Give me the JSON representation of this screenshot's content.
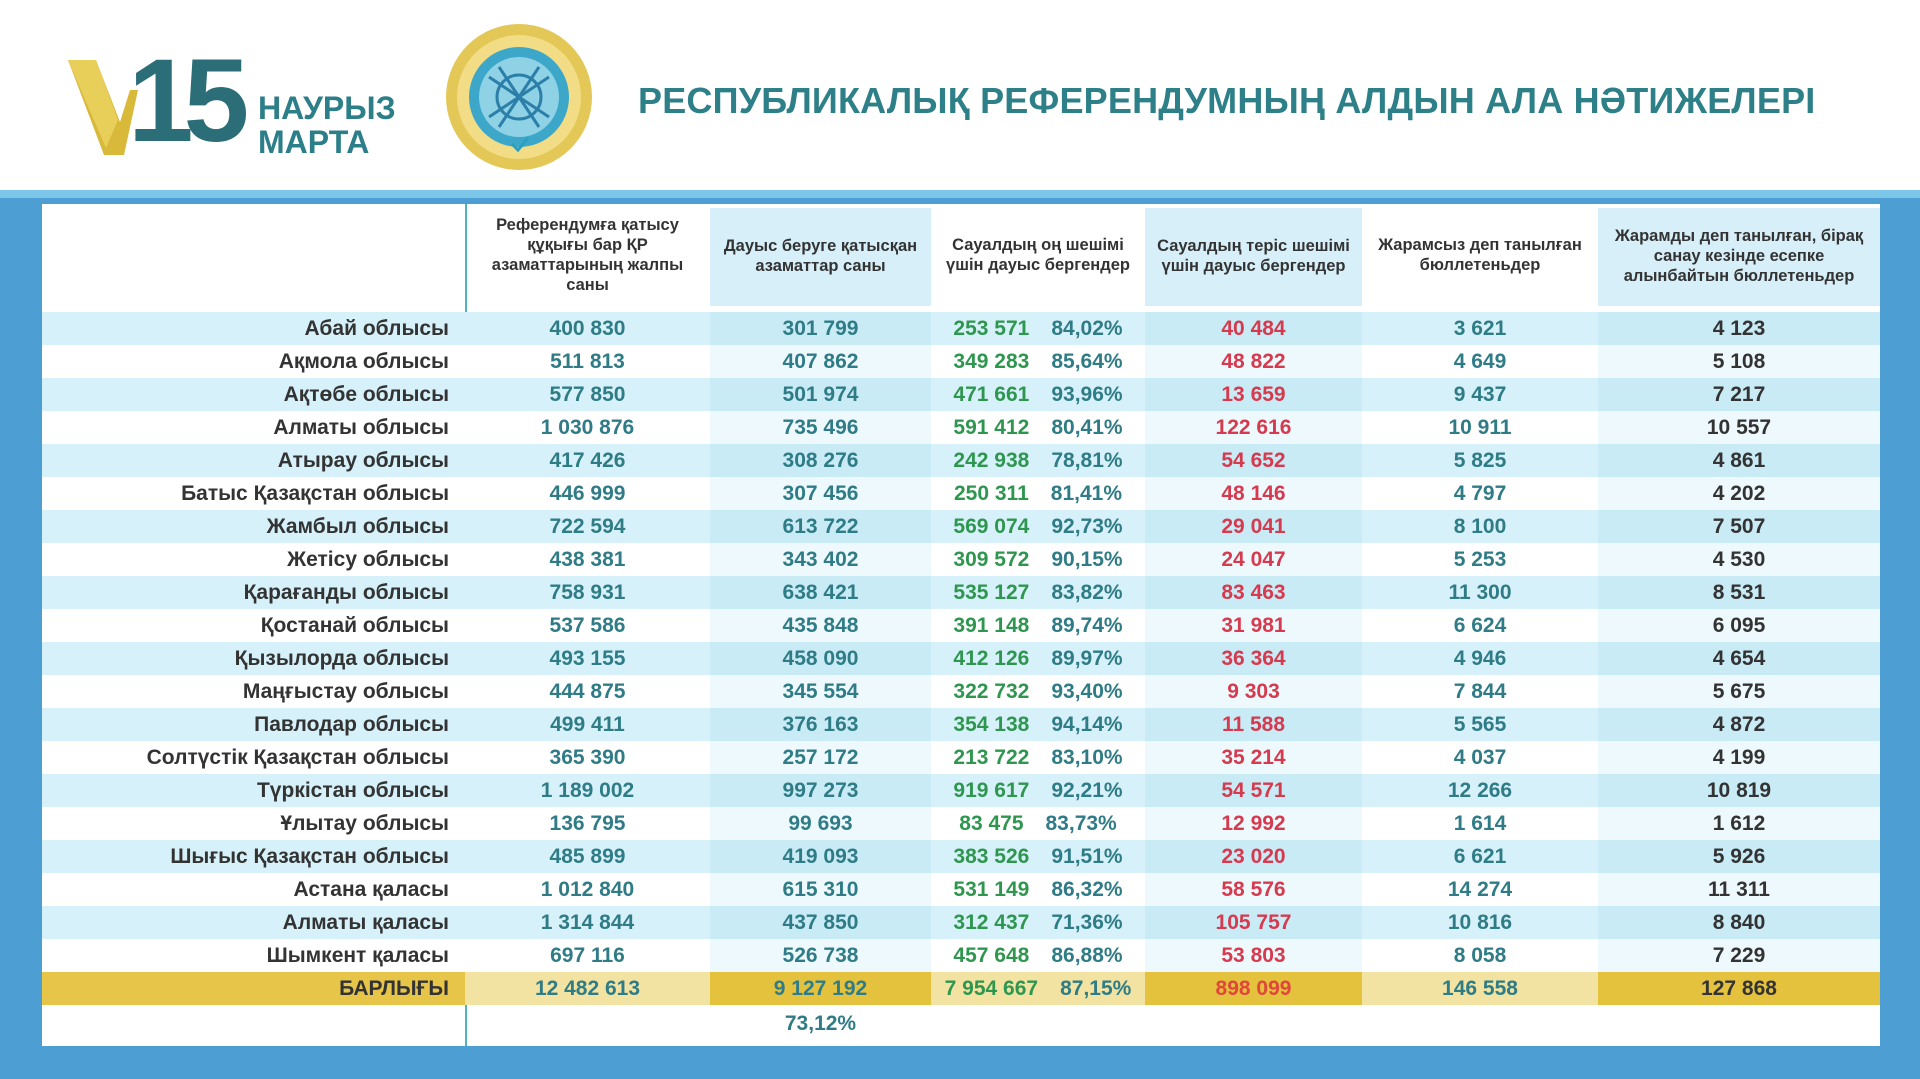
{
  "header": {
    "logo_number": "15",
    "logo_month_kk": "НАУРЫЗ",
    "logo_month_ru": "МАРТА",
    "title": "РЕСПУБЛИКАЛЫҚ РЕФЕРЕНДУМНЫҢ АЛДЫН АЛА НӘТИЖЕЛЕРІ"
  },
  "colors": {
    "frame": "#4d9fd3",
    "title": "#2d7f88",
    "yes": "#2f9650",
    "no": "#d63a4e",
    "total_row": "#e6c548",
    "stripe": "#d6f1f9"
  },
  "table": {
    "columns": [
      "Референдумға қатысу құқығы бар ҚР азаматтарының жалпы саны",
      "Дауыс беруге қатысқан азаматтар саны",
      "Сауалдың оң шешімі үшін дауыс бергендер",
      "Сауалдың теріс шешімі үшін дауыс бергендер",
      "Жарамсыз деп танылған бюллетеньдер",
      "Жарамды деп танылған, бірақ санау кезінде есепке алынбайтын бюллетеньдер"
    ],
    "rows": [
      {
        "region": "Абай облысы",
        "eligible": "400 830",
        "voted": "301 799",
        "yes": "253 571",
        "yes_pct": "84,02%",
        "no": "40 484",
        "invalid": "3 621",
        "uncounted": "4 123"
      },
      {
        "region": "Ақмола облысы",
        "eligible": "511 813",
        "voted": "407 862",
        "yes": "349 283",
        "yes_pct": "85,64%",
        "no": "48 822",
        "invalid": "4 649",
        "uncounted": "5 108"
      },
      {
        "region": "Ақтөбе облысы",
        "eligible": "577 850",
        "voted": "501 974",
        "yes": "471 661",
        "yes_pct": "93,96%",
        "no": "13 659",
        "invalid": "9 437",
        "uncounted": "7 217"
      },
      {
        "region": "Алматы облысы",
        "eligible": "1 030 876",
        "voted": "735 496",
        "yes": "591 412",
        "yes_pct": "80,41%",
        "no": "122 616",
        "invalid": "10 911",
        "uncounted": "10 557"
      },
      {
        "region": "Атырау облысы",
        "eligible": "417 426",
        "voted": "308 276",
        "yes": "242 938",
        "yes_pct": "78,81%",
        "no": "54 652",
        "invalid": "5 825",
        "uncounted": "4 861"
      },
      {
        "region": "Батыс Қазақстан облысы",
        "eligible": "446 999",
        "voted": "307 456",
        "yes": "250 311",
        "yes_pct": "81,41%",
        "no": "48 146",
        "invalid": "4 797",
        "uncounted": "4 202"
      },
      {
        "region": "Жамбыл облысы",
        "eligible": "722 594",
        "voted": "613 722",
        "yes": "569 074",
        "yes_pct": "92,73%",
        "no": "29 041",
        "invalid": "8 100",
        "uncounted": "7 507"
      },
      {
        "region": "Жетісу облысы",
        "eligible": "438 381",
        "voted": "343 402",
        "yes": "309 572",
        "yes_pct": "90,15%",
        "no": "24 047",
        "invalid": "5 253",
        "uncounted": "4 530"
      },
      {
        "region": "Қарағанды облысы",
        "eligible": "758 931",
        "voted": "638 421",
        "yes": "535 127",
        "yes_pct": "83,82%",
        "no": "83 463",
        "invalid": "11 300",
        "uncounted": "8 531"
      },
      {
        "region": "Қостанай облысы",
        "eligible": "537 586",
        "voted": "435 848",
        "yes": "391 148",
        "yes_pct": "89,74%",
        "no": "31 981",
        "invalid": "6 624",
        "uncounted": "6 095"
      },
      {
        "region": "Қызылорда облысы",
        "eligible": "493 155",
        "voted": "458 090",
        "yes": "412 126",
        "yes_pct": "89,97%",
        "no": "36 364",
        "invalid": "4 946",
        "uncounted": "4 654"
      },
      {
        "region": "Маңғыстау облысы",
        "eligible": "444 875",
        "voted": "345 554",
        "yes": "322 732",
        "yes_pct": "93,40%",
        "no": "9 303",
        "invalid": "7 844",
        "uncounted": "5 675"
      },
      {
        "region": "Павлодар облысы",
        "eligible": "499 411",
        "voted": "376 163",
        "yes": "354 138",
        "yes_pct": "94,14%",
        "no": "11 588",
        "invalid": "5 565",
        "uncounted": "4 872"
      },
      {
        "region": "Солтүстік Қазақстан облысы",
        "eligible": "365 390",
        "voted": "257 172",
        "yes": "213 722",
        "yes_pct": "83,10%",
        "no": "35 214",
        "invalid": "4 037",
        "uncounted": "4 199"
      },
      {
        "region": "Түркістан облысы",
        "eligible": "1 189 002",
        "voted": "997 273",
        "yes": "919 617",
        "yes_pct": "92,21%",
        "no": "54 571",
        "invalid": "12 266",
        "uncounted": "10 819"
      },
      {
        "region": "Ұлытау облысы",
        "eligible": "136 795",
        "voted": "99 693",
        "yes": "83 475",
        "yes_pct": "83,73%",
        "no": "12 992",
        "invalid": "1 614",
        "uncounted": "1 612"
      },
      {
        "region": "Шығыс Қазақстан облысы",
        "eligible": "485 899",
        "voted": "419 093",
        "yes": "383 526",
        "yes_pct": "91,51%",
        "no": "23 020",
        "invalid": "6 621",
        "uncounted": "5 926"
      },
      {
        "region": "Астана қаласы",
        "eligible": "1 012 840",
        "voted": "615 310",
        "yes": "531 149",
        "yes_pct": "86,32%",
        "no": "58 576",
        "invalid": "14 274",
        "uncounted": "11 311"
      },
      {
        "region": "Алматы қаласы",
        "eligible": "1 314 844",
        "voted": "437 850",
        "yes": "312 437",
        "yes_pct": "71,36%",
        "no": "105 757",
        "invalid": "10 816",
        "uncounted": "8 840"
      },
      {
        "region": "Шымкент қаласы",
        "eligible": "697 116",
        "voted": "526 738",
        "yes": "457 648",
        "yes_pct": "86,88%",
        "no": "53 803",
        "invalid": "8 058",
        "uncounted": "7 229"
      }
    ],
    "total": {
      "region": "БАРЛЫҒЫ",
      "eligible": "12 482 613",
      "voted": "9 127 192",
      "yes": "7 954 667",
      "yes_pct": "87,15%",
      "no": "898 099",
      "invalid": "146 558",
      "uncounted": "127 868"
    },
    "turnout_pct": "73,12%"
  }
}
